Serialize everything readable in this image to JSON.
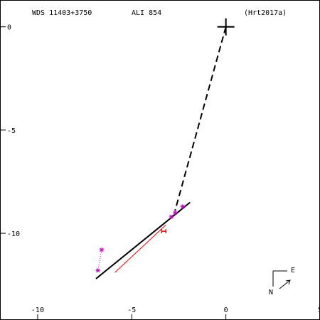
{
  "header": {
    "left": "WDS 11403+3750",
    "center": "ALI 854",
    "right": "(Hrt2017a)"
  },
  "compass": {
    "east_label": "E",
    "north_label": "N"
  },
  "colors": {
    "frame": "#000000",
    "fit_line": "#000000",
    "residual_line": "#ff0000",
    "obs_magenta": "#cc00cc",
    "obs_red": "#ff0000"
  },
  "chart_data": {
    "type": "scatter",
    "title": "",
    "xlabel": "",
    "ylabel": "",
    "xlim": [
      -12,
      5
    ],
    "ylim": [
      -14.2,
      1.3
    ],
    "x_ticks": [
      -10,
      -5,
      0,
      5
    ],
    "x_tick_labels": [
      "-10",
      "-5",
      "0",
      "5"
    ],
    "y_ticks": [
      0,
      -5,
      -10
    ],
    "y_tick_labels": [
      "0",
      "-5",
      "-10"
    ],
    "primary": [
      0,
      0
    ],
    "orbit_segment": [
      [
        -6.9,
        -12.2
      ],
      [
        -1.9,
        -8.5
      ]
    ],
    "node_line": [
      [
        0,
        0
      ],
      [
        -2.7,
        -8.9
      ]
    ],
    "residual_line": [
      [
        -5.9,
        -11.9
      ],
      [
        -3.2,
        -9.6
      ]
    ],
    "observations": [
      {
        "x": -6.6,
        "y": -10.8,
        "marker": "star",
        "color": "magenta"
      },
      {
        "x": -6.8,
        "y": -11.8,
        "marker": "star",
        "color": "magenta"
      },
      {
        "x": -3.3,
        "y": -9.9,
        "marker": "H",
        "color": "red"
      },
      {
        "x": -2.9,
        "y": -9.2,
        "marker": "star",
        "color": "magenta"
      },
      {
        "x": -2.7,
        "y": -9.0,
        "marker": "star",
        "color": "magenta"
      },
      {
        "x": -2.3,
        "y": -8.7,
        "marker": "star",
        "color": "magenta"
      }
    ],
    "grid": false
  }
}
